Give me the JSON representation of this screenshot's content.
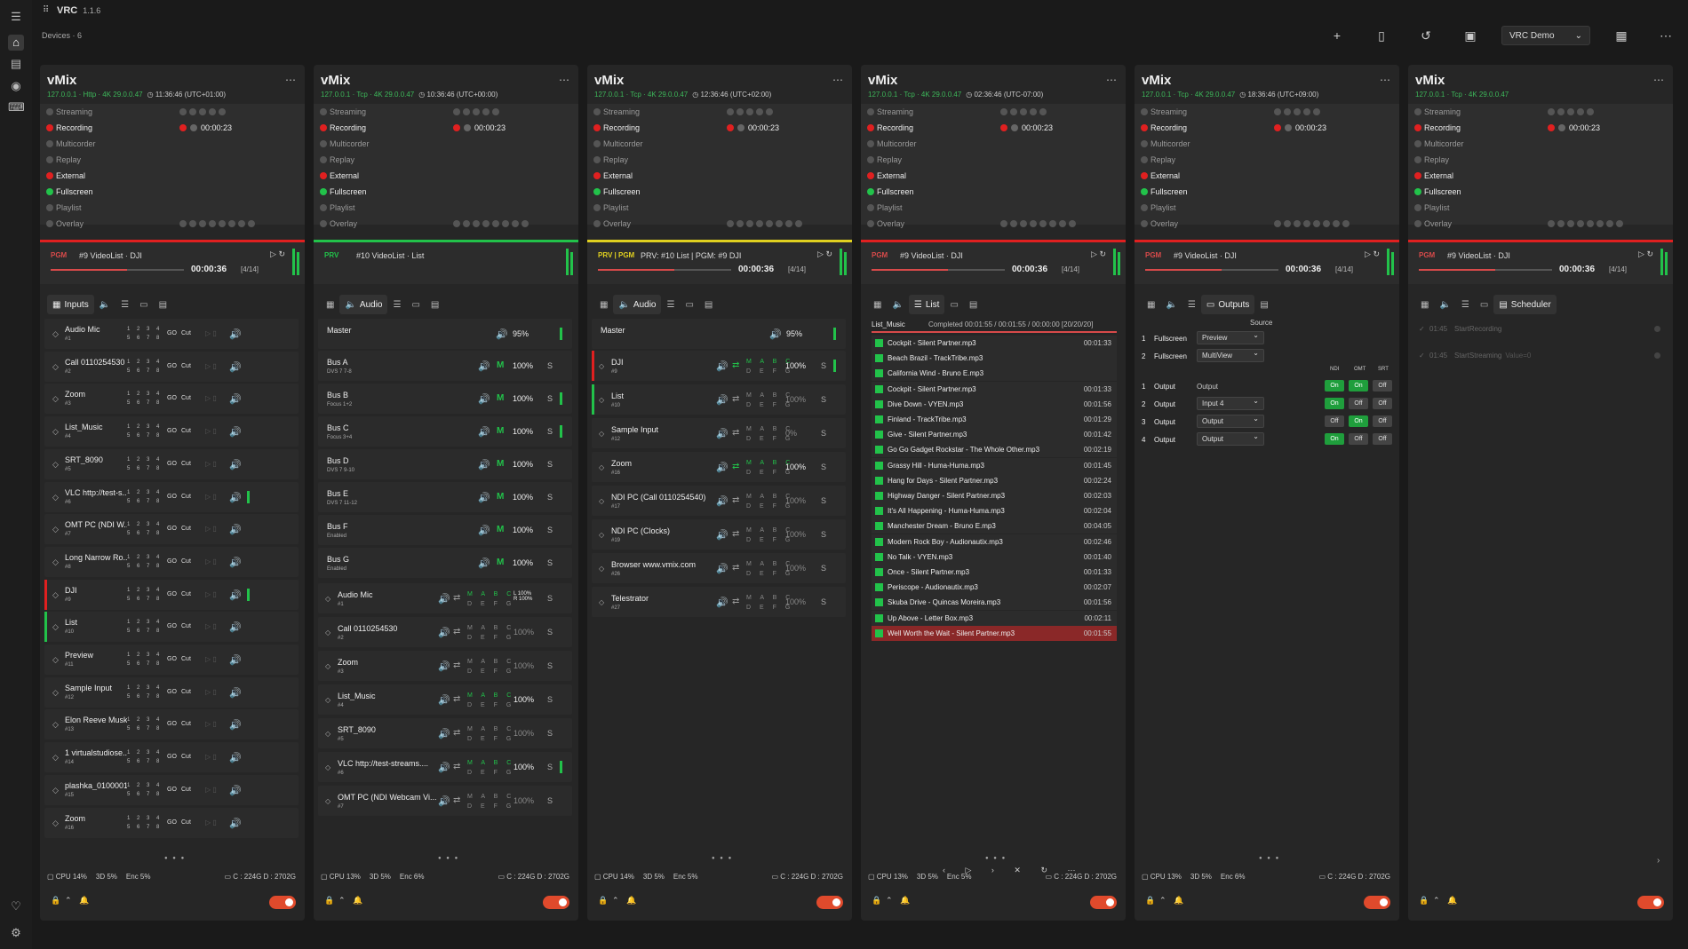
{
  "app": {
    "name": "VRC",
    "version": "1.1.6",
    "devices_label": "Devices · 6"
  },
  "toolbar": {
    "profile": "VRC Demo"
  },
  "colors": {
    "green": "#22c24a",
    "red": "#e02020",
    "yellow": "#e0d020",
    "accent": "#e04a2c"
  },
  "status_labels": [
    "Streaming",
    "Recording",
    "Multicorder",
    "Replay",
    "External",
    "Fullscreen",
    "Playlist",
    "Overlay"
  ],
  "rec_time": "00:00:23",
  "lane_time": "00:00:36",
  "lane_count": "[4/14]",
  "stats": {
    "cpu1": "CPU 14%",
    "cpu2": "CPU 13%",
    "d3": "3D 5%",
    "enc1": "Enc 5%",
    "enc2": "Enc 6%",
    "disk": "C : 224G  D : 2702G"
  },
  "panels": [
    {
      "title": "vMix",
      "addr": "127.0.0.1 · Http · 4K 29.0.0.47",
      "clock": "11:36:46 (UTC+01:00)",
      "lane_badge": "PGM",
      "lane_name": "#9 VideoList · DJI",
      "lane_pct": 0.57,
      "tabs": [
        "Inputs"
      ],
      "tab_active": 0
    },
    {
      "title": "vMix",
      "addr": "127.0.0.1 · Tcp · 4K 29.0.0.47",
      "clock": "10:36:46 (UTC+00:00)",
      "lane_badge": "PRV",
      "lane_name": "#10 VideoList · List",
      "tabs": [
        "Audio"
      ],
      "tab_active": 1
    },
    {
      "title": "vMix",
      "addr": "127.0.0.1 · Tcp · 4K 29.0.0.47",
      "clock": "12:36:46 (UTC+02:00)",
      "lane_badge": "PRV | PGM",
      "lane_name": "PRV: #10 List  |  PGM: #9 DJI",
      "lane_pct": 0.57,
      "tabs": [
        "Audio"
      ],
      "tab_active": 1
    },
    {
      "title": "vMix",
      "addr": "127.0.0.1 · Tcp · 4K 29.0.0.47",
      "clock": "02:36:46 (UTC-07:00)",
      "lane_badge": "PGM",
      "lane_name": "#9 VideoList · DJI",
      "lane_pct": 0.57,
      "tabs": [
        "List"
      ],
      "tab_active": 2
    },
    {
      "title": "vMix",
      "addr": "127.0.0.1 · Tcp · 4K 29.0.0.47",
      "clock": "18:36:46 (UTC+09:00)",
      "lane_badge": "PGM",
      "lane_name": "#9 VideoList · DJI",
      "lane_pct": 0.57,
      "tabs": [
        "Outputs"
      ],
      "tab_active": 3
    },
    {
      "title": "vMix",
      "addr": "127.0.0.1 · Tcp · 4K 29.0.0.47",
      "clock": "",
      "lane_badge": "PGM",
      "lane_name": "#9 VideoList · DJI",
      "lane_pct": 0.57,
      "tabs": [
        "Scheduler"
      ],
      "tab_active": 4
    }
  ],
  "inputs": [
    {
      "name": "Audio Mic",
      "no": "#1",
      "lb": "",
      "on": true
    },
    {
      "name": "Call 0110254530",
      "no": "#2",
      "lb": "",
      "on": false
    },
    {
      "name": "Zoom",
      "no": "#3",
      "lb": "",
      "on": true
    },
    {
      "name": "List_Music",
      "no": "#4",
      "lb": "",
      "on": true
    },
    {
      "name": "SRT_8090",
      "no": "#5",
      "lb": "",
      "on": true
    },
    {
      "name": "VLC http://test-s...",
      "no": "#6",
      "lb": "",
      "on": true,
      "vu": true
    },
    {
      "name": "OMT PC (NDI W...",
      "no": "#7",
      "lb": "",
      "on": false
    },
    {
      "name": "Long Narrow Ro...",
      "no": "#8",
      "lb": "",
      "on": false
    },
    {
      "name": "DJI",
      "no": "#9",
      "lb": "red",
      "on": true,
      "vu": true
    },
    {
      "name": "List",
      "no": "#10",
      "lb": "green",
      "on": false
    },
    {
      "name": "Preview",
      "no": "#11",
      "lb": "",
      "on": false
    },
    {
      "name": "Sample Input",
      "no": "#12",
      "lb": "",
      "on": false
    },
    {
      "name": "Elon Reeve Musk",
      "no": "#13",
      "lb": "",
      "on": false
    },
    {
      "name": "1 virtualstudiose...",
      "no": "#14",
      "lb": "",
      "on": false
    },
    {
      "name": "plashka_0100001...",
      "no": "#15",
      "lb": "",
      "on": false
    },
    {
      "name": "Zoom",
      "no": "#16",
      "lb": "",
      "on": true
    }
  ],
  "grid4": "1 2 3 4 5 6 7 8",
  "go": "GO",
  "cut": "Cut",
  "audio": {
    "master": "Master",
    "master_vol": "95%",
    "buses": [
      {
        "name": "Bus A",
        "sub": "DVS 7 7-8"
      },
      {
        "name": "Bus B",
        "sub": "Focus 1+2",
        "vu": true
      },
      {
        "name": "Bus C",
        "sub": "Focus 3+4",
        "vu": true
      },
      {
        "name": "Bus D",
        "sub": "DVS 7 9-10"
      },
      {
        "name": "Bus E",
        "sub": "DVS 7 11-12"
      },
      {
        "name": "Bus F",
        "sub": "Enabled"
      },
      {
        "name": "Bus G",
        "sub": "Enabled"
      }
    ],
    "m": "M",
    "vol": "100%",
    "s": "S",
    "inputs": [
      {
        "name": "Audio Mic",
        "no": "#1",
        "vol": "L 100%\nR 100%",
        "on": true
      },
      {
        "name": "Call 0110254530",
        "no": "#2",
        "on": false
      },
      {
        "name": "Zoom",
        "no": "#3",
        "on": false
      },
      {
        "name": "List_Music",
        "no": "#4",
        "on": true
      },
      {
        "name": "SRT_8090",
        "no": "#5",
        "on": false
      },
      {
        "name": "VLC http://test-streams....",
        "no": "#6",
        "on": true,
        "vu": true
      },
      {
        "name": "OMT PC (NDI Webcam Vi...",
        "no": "#7",
        "on": false
      }
    ],
    "abc1": "M A B C",
    "abc2": "D E F G"
  },
  "audio2": [
    {
      "name": "DJI",
      "no": "#9",
      "vol": "100%",
      "on": true,
      "lb": "red",
      "vu": true
    },
    {
      "name": "List",
      "no": "#10",
      "vol": "100%",
      "on": false,
      "lb": "green"
    },
    {
      "name": "Sample Input",
      "no": "#12",
      "vol": "0%",
      "on": false
    },
    {
      "name": "Zoom",
      "no": "#16",
      "vol": "100%",
      "on": true
    },
    {
      "name": "NDI PC (Call 0110254540)",
      "no": "#17",
      "vol": "100%",
      "on": false
    },
    {
      "name": "NDI PC (Clocks)",
      "no": "#19",
      "vol": "100%",
      "on": false
    },
    {
      "name": "Browser www.vmix.com",
      "no": "#26",
      "vol": "100%",
      "on": false
    },
    {
      "name": "Telestrator",
      "no": "#27",
      "vol": "100%",
      "on": false
    }
  ],
  "playlist": {
    "name": "List_Music",
    "status": "Completed  00:01:55 / 00:01:55 / 00:00:00  [20/20/20]",
    "items": [
      {
        "t": "Cockpit - Silent Partner.mp3",
        "d": "00:01:33"
      },
      {
        "t": "Beach Brazil - TrackTribe.mp3",
        "d": ""
      },
      {
        "t": "California Wind - Bruno E.mp3",
        "d": ""
      },
      {
        "t": "Cockpit - Silent Partner.mp3",
        "d": "00:01:33"
      },
      {
        "t": "Dive Down - VYEN.mp3",
        "d": "00:01:56"
      },
      {
        "t": "Finland - TrackTribe.mp3",
        "d": "00:01:29"
      },
      {
        "t": "Give - Silent Partner.mp3",
        "d": "00:01:42"
      },
      {
        "t": "Go Go Gadget Rockstar - The Whole Other.mp3",
        "d": "00:02:19"
      },
      {
        "t": "Grassy Hill - Huma-Huma.mp3",
        "d": "00:01:45"
      },
      {
        "t": "Hang for Days - Silent Partner.mp3",
        "d": "00:02:24"
      },
      {
        "t": "Highway Danger - Silent Partner.mp3",
        "d": "00:02:03"
      },
      {
        "t": "It's All Happening - Huma-Huma.mp3",
        "d": "00:02:04"
      },
      {
        "t": "Manchester Dream - Bruno E.mp3",
        "d": "00:04:05"
      },
      {
        "t": "Modern Rock Boy - Audionautix.mp3",
        "d": "00:02:46"
      },
      {
        "t": "No Talk - VYEN.mp3",
        "d": "00:01:40"
      },
      {
        "t": "Once - Silent Partner.mp3",
        "d": "00:01:33"
      },
      {
        "t": "Periscope - Audionautix.mp3",
        "d": "00:02:07"
      },
      {
        "t": "Skuba Drive - Quincas Moreira.mp3",
        "d": "00:01:56"
      },
      {
        "t": "Up Above - Letter Box.mp3",
        "d": "00:02:11"
      },
      {
        "t": "Well Worth the Wait - Silent Partner.mp3",
        "d": "00:01:55",
        "sel": true
      }
    ]
  },
  "outputs": {
    "source": "Source",
    "fullscreen": [
      {
        "n": "1",
        "lbl": "Fullscreen",
        "val": "Preview"
      },
      {
        "n": "2",
        "lbl": "Fullscreen",
        "val": "MultiView"
      }
    ],
    "heads": [
      "NDI",
      "OMT",
      "SRT"
    ],
    "rows": [
      {
        "n": "1",
        "lbl": "Output",
        "val": "Output",
        "plain": true,
        "st": [
          "On",
          "On",
          "Off"
        ]
      },
      {
        "n": "2",
        "lbl": "Output",
        "val": "Input 4",
        "st": [
          "On",
          "Off",
          "Off"
        ]
      },
      {
        "n": "3",
        "lbl": "Output",
        "val": "Output",
        "st": [
          "Off",
          "On",
          "Off"
        ]
      },
      {
        "n": "4",
        "lbl": "Output",
        "val": "Output",
        "st": [
          "On",
          "Off",
          "Off"
        ]
      }
    ]
  },
  "scheduler": [
    {
      "tm": "01:45",
      "ac": "StartRecording",
      "vv": ""
    },
    {
      "tm": "01:45",
      "ac": "StartStreaming",
      "vv": "Value=0"
    }
  ]
}
